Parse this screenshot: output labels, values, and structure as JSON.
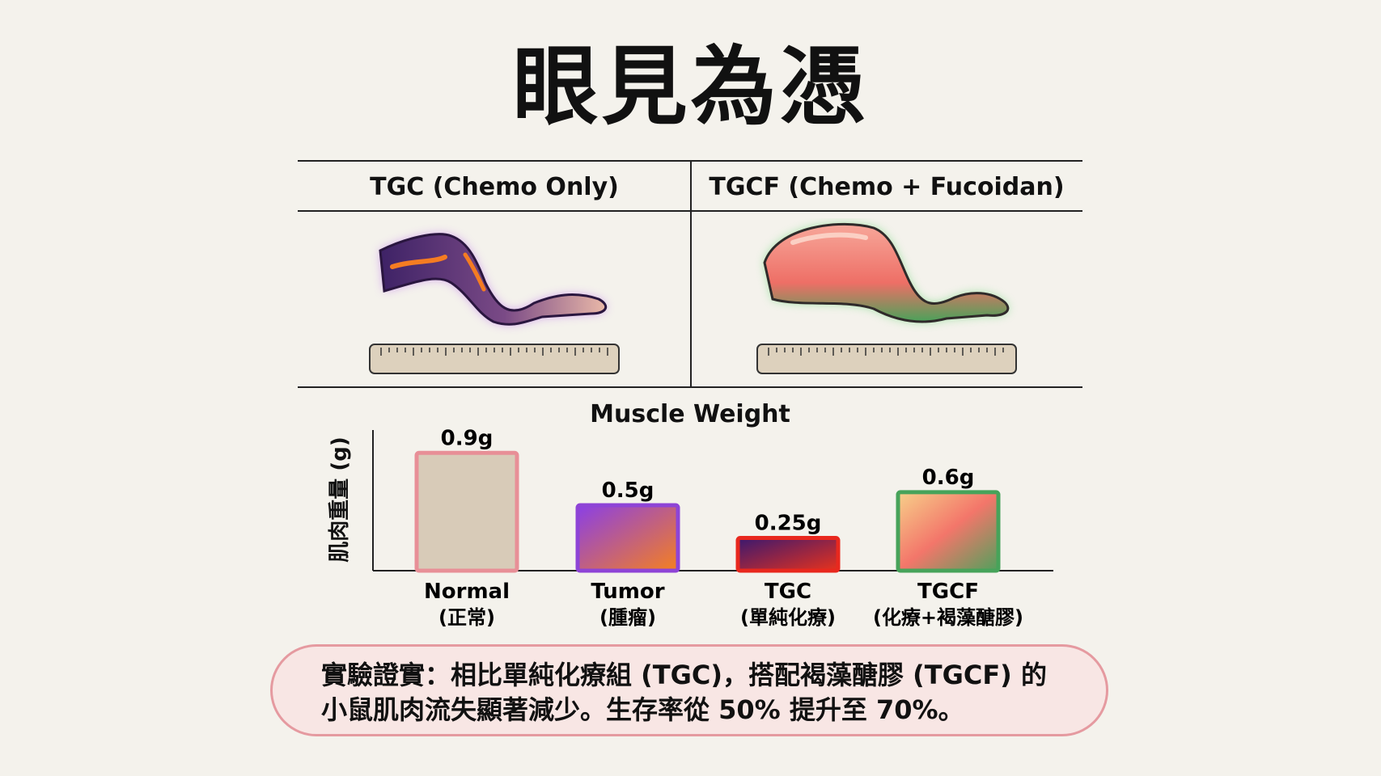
{
  "title": "眼見為憑",
  "panels": {
    "left_label": "TGC (Chemo Only)",
    "right_label": "TGCF (Chemo + Fucoidan)"
  },
  "chart_data": {
    "type": "bar",
    "title": "Muscle Weight",
    "ylabel": "肌肉重量 (g)",
    "xlabel": "",
    "categories": [
      "Normal",
      "Tumor",
      "TGC",
      "TGCF"
    ],
    "category_sublabels": [
      "(正常)",
      "(腫瘤)",
      "(單純化療)",
      "(化療+褐藻醣膠)"
    ],
    "values": [
      0.9,
      0.5,
      0.25,
      0.6
    ],
    "value_labels": [
      "0.9g",
      "0.5g",
      "0.25g",
      "0.6g"
    ],
    "ylim": [
      0,
      1.05
    ],
    "grid": false,
    "colors": {
      "Normal": {
        "fill": "#d8cbb8",
        "border": "#e88f97"
      },
      "Tumor": {
        "from": "#8a3fe6",
        "to": "#f5801f",
        "border": "#8e44d6"
      },
      "TGC": {
        "from": "#3a1870",
        "to": "#e8321c",
        "border": "#e8281e"
      },
      "TGCF": {
        "from": "#f7d08a",
        "mid": "#f3766a",
        "to": "#4fa15c",
        "border": "#47a35a"
      }
    }
  },
  "callout": {
    "line1": "實驗證實：相比單純化療組 (TGC)，搭配褐藻醣膠 (TGCF) 的",
    "line2": "小鼠肌肉流失顯著減少。生存率從 50% 提升至 70%。"
  }
}
